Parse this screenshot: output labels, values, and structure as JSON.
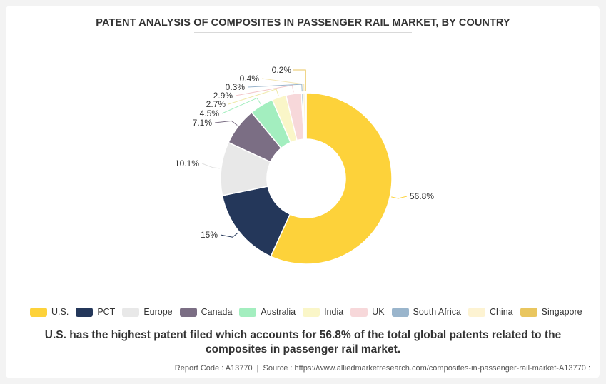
{
  "chart_data": {
    "type": "pie",
    "title": "PATENT ANALYSIS OF COMPOSITES IN PASSENGER RAIL MARKET, BY COUNTRY",
    "slices": [
      {
        "label": "U.S.",
        "value": 56.8,
        "display": "56.8%",
        "color": "#fdd23a"
      },
      {
        "label": "PCT",
        "value": 15,
        "display": "15%",
        "color": "#24375a"
      },
      {
        "label": "Europe",
        "value": 10.1,
        "display": "10.1%",
        "color": "#e8e8e8"
      },
      {
        "label": "Canada",
        "value": 7.1,
        "display": "7.1%",
        "color": "#7b6e84"
      },
      {
        "label": "Australia",
        "value": 4.5,
        "display": "4.5%",
        "color": "#a3eebf"
      },
      {
        "label": "India",
        "value": 2.7,
        "display": "2.7%",
        "color": "#faf6c8"
      },
      {
        "label": "UK",
        "value": 2.9,
        "display": "2.9%",
        "color": "#f7d8da"
      },
      {
        "label": "South Africa",
        "value": 0.3,
        "display": "0.3%",
        "color": "#9ab5cc"
      },
      {
        "label": "China",
        "value": 0.4,
        "display": "0.4%",
        "color": "#fdf3d2"
      },
      {
        "label": "Singapore",
        "value": 0.2,
        "display": "0.2%",
        "color": "#e9c65f"
      }
    ],
    "legend_position": "bottom",
    "donut": true
  },
  "caption": "U.S. has the highest patent filed which accounts for 56.8% of the total global patents related to the composites in passenger rail market.",
  "footer": {
    "report_code": "Report Code : A13770",
    "source": "Source : https://www.alliedmarketresearch.com/composites-in-passenger-rail-market-A13770 :"
  }
}
